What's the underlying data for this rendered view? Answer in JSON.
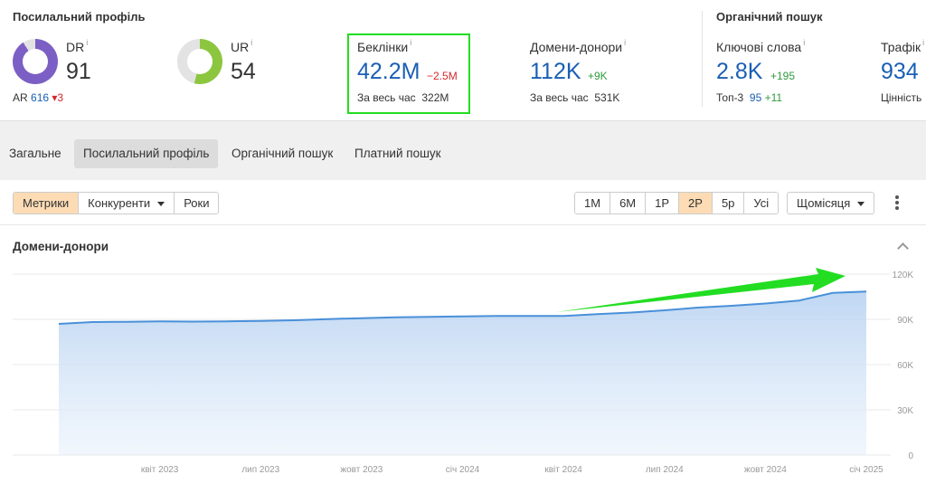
{
  "backlink_profile": {
    "title": "Посилальний профіль",
    "dr": {
      "label": "DR",
      "info": "i",
      "value": "91",
      "fraction": 0.91
    },
    "ar": {
      "label": "AR",
      "value": "616",
      "change": "3"
    },
    "ur": {
      "label": "UR",
      "info": "i",
      "value": "54",
      "fraction": 0.54
    },
    "backlinks": {
      "label": "Беклінки",
      "info": "i",
      "value": "42.2M",
      "change": "−2.5M",
      "all_time_label": "За весь час",
      "all_time_value": "322M"
    },
    "ref_domains": {
      "label": "Домени-донори",
      "info": "i",
      "value": "112K",
      "change": "+9K",
      "all_time_label": "За весь час",
      "all_time_value": "531K"
    }
  },
  "organic_search": {
    "title": "Органічний пошук",
    "keywords": {
      "label": "Ключові слова",
      "info": "i",
      "value": "2.8K",
      "change": "+195",
      "top3_label": "Топ-3",
      "top3_value": "95",
      "top3_change": "+11"
    },
    "traffic": {
      "label": "Трафік",
      "info": "i",
      "value": "934",
      "value_label": "Цінність"
    }
  },
  "tabs": [
    {
      "label": "Загальне"
    },
    {
      "label": "Посилальний профіль",
      "active": true
    },
    {
      "label": "Органічний пошук"
    },
    {
      "label": "Платний пошук"
    }
  ],
  "controls": {
    "metrics": "Метрики",
    "competitors": "Конкуренти",
    "years": "Роки",
    "ranges": [
      "1M",
      "6M",
      "1P",
      "2P",
      "5р",
      "Усі"
    ],
    "active_range": "2P",
    "interval": "Щомісяця"
  },
  "colors": {
    "dr_donut": "#7b5fc4",
    "ur_donut": "#8cc63f",
    "line": "#4a90d9",
    "area": "#cfe0f5",
    "annotation": "#22dd22"
  },
  "chart_data": {
    "type": "area",
    "title": "Домени-донори",
    "x": [
      "2023-01",
      "2023-02",
      "2023-03",
      "2023-04",
      "2023-05",
      "2023-06",
      "2023-07",
      "2023-08",
      "2023-09",
      "2023-10",
      "2023-11",
      "2023-12",
      "2024-01",
      "2024-02",
      "2024-03",
      "2024-04",
      "2024-05",
      "2024-06",
      "2024-07",
      "2024-08",
      "2024-09",
      "2024-10",
      "2024-11",
      "2024-12",
      "2025-01"
    ],
    "values": [
      87000,
      88200,
      88400,
      88600,
      88500,
      88700,
      89000,
      89400,
      90200,
      90800,
      91300,
      91700,
      92000,
      92300,
      92300,
      92200,
      93500,
      94500,
      96000,
      97800,
      99000,
      100500,
      102500,
      107500,
      108500
    ],
    "x_tick_labels": [
      "квіт 2023",
      "лип 2023",
      "жовт 2023",
      "січ 2024",
      "квіт 2024",
      "лип 2024",
      "жовт 2024",
      "січ 2025"
    ],
    "y_tick_labels": [
      "120K",
      "90K",
      "60K",
      "30K",
      "0"
    ],
    "y_ticks": [
      120000,
      90000,
      60000,
      30000,
      0
    ],
    "ylim": [
      0,
      120000
    ],
    "grid": true,
    "y_axis_side": "right",
    "annotation": "green arrow pointing up-right along the rising trend"
  }
}
